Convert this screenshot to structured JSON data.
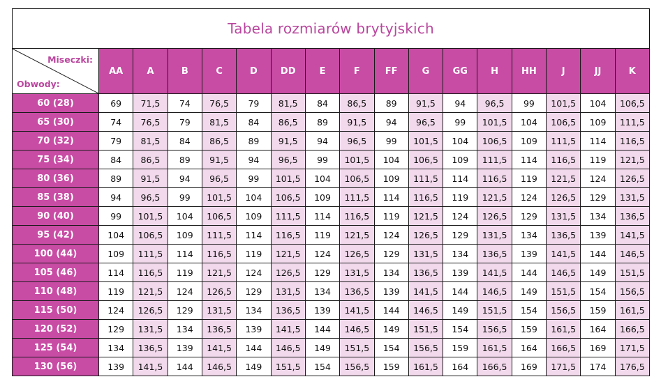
{
  "title": "Tabela rozmiarów brytyjskich",
  "corner": {
    "top_label": "Miseczki:",
    "bottom_label": "Obwody:"
  },
  "colors": {
    "header": "#C84BA4",
    "pink_cell": "#F2D9EC",
    "title": "#B9479E"
  },
  "cups": [
    "AA",
    "A",
    "B",
    "C",
    "D",
    "DD",
    "E",
    "F",
    "FF",
    "G",
    "GG",
    "H",
    "HH",
    "J",
    "JJ",
    "K"
  ],
  "rows": [
    {
      "band": "60 (28)",
      "values": [
        "69",
        "71,5",
        "74",
        "76,5",
        "79",
        "81,5",
        "84",
        "86,5",
        "89",
        "91,5",
        "94",
        "96,5",
        "99",
        "101,5",
        "104",
        "106,5"
      ]
    },
    {
      "band": "65 (30)",
      "values": [
        "74",
        "76,5",
        "79",
        "81,5",
        "84",
        "86,5",
        "89",
        "91,5",
        "94",
        "96,5",
        "99",
        "101,5",
        "104",
        "106,5",
        "109",
        "111,5"
      ]
    },
    {
      "band": "70 (32)",
      "values": [
        "79",
        "81,5",
        "84",
        "86,5",
        "89",
        "91,5",
        "94",
        "96,5",
        "99",
        "101,5",
        "104",
        "106,5",
        "109",
        "111,5",
        "114",
        "116,5"
      ]
    },
    {
      "band": "75 (34)",
      "values": [
        "84",
        "86,5",
        "89",
        "91,5",
        "94",
        "96,5",
        "99",
        "101,5",
        "104",
        "106,5",
        "109",
        "111,5",
        "114",
        "116,5",
        "119",
        "121,5"
      ]
    },
    {
      "band": "80 (36)",
      "values": [
        "89",
        "91,5",
        "94",
        "96,5",
        "99",
        "101,5",
        "104",
        "106,5",
        "109",
        "111,5",
        "114",
        "116,5",
        "119",
        "121,5",
        "124",
        "126,5"
      ]
    },
    {
      "band": "85 (38)",
      "values": [
        "94",
        "96,5",
        "99",
        "101,5",
        "104",
        "106,5",
        "109",
        "111,5",
        "114",
        "116,5",
        "119",
        "121,5",
        "124",
        "126,5",
        "129",
        "131,5"
      ]
    },
    {
      "band": "90 (40)",
      "values": [
        "99",
        "101,5",
        "104",
        "106,5",
        "109",
        "111,5",
        "114",
        "116,5",
        "119",
        "121,5",
        "124",
        "126,5",
        "129",
        "131,5",
        "134",
        "136,5"
      ]
    },
    {
      "band": "95 (42)",
      "values": [
        "104",
        "106,5",
        "109",
        "111,5",
        "114",
        "116,5",
        "119",
        "121,5",
        "124",
        "126,5",
        "129",
        "131,5",
        "134",
        "136,5",
        "139",
        "141,5"
      ]
    },
    {
      "band": "100 (44)",
      "values": [
        "109",
        "111,5",
        "114",
        "116,5",
        "119",
        "121,5",
        "124",
        "126,5",
        "129",
        "131,5",
        "134",
        "136,5",
        "139",
        "141,5",
        "144",
        "146,5"
      ]
    },
    {
      "band": "105 (46)",
      "values": [
        "114",
        "116,5",
        "119",
        "121,5",
        "124",
        "126,5",
        "129",
        "131,5",
        "134",
        "136,5",
        "139",
        "141,5",
        "144",
        "146,5",
        "149",
        "151,5"
      ]
    },
    {
      "band": "110 (48)",
      "values": [
        "119",
        "121,5",
        "124",
        "126,5",
        "129",
        "131,5",
        "134",
        "136,5",
        "139",
        "141,5",
        "144",
        "146,5",
        "149",
        "151,5",
        "154",
        "156,5"
      ]
    },
    {
      "band": "115 (50)",
      "values": [
        "124",
        "126,5",
        "129",
        "131,5",
        "134",
        "136,5",
        "139",
        "141,5",
        "144",
        "146,5",
        "149",
        "151,5",
        "154",
        "156,5",
        "159",
        "161,5"
      ]
    },
    {
      "band": "120 (52)",
      "values": [
        "129",
        "131,5",
        "134",
        "136,5",
        "139",
        "141,5",
        "144",
        "146,5",
        "149",
        "151,5",
        "154",
        "156,5",
        "159",
        "161,5",
        "164",
        "166,5"
      ]
    },
    {
      "band": "125 (54)",
      "values": [
        "134",
        "136,5",
        "139",
        "141,5",
        "144",
        "146,5",
        "149",
        "151,5",
        "154",
        "156,5",
        "159",
        "161,5",
        "164",
        "166,5",
        "169",
        "171,5"
      ]
    },
    {
      "band": "130 (56)",
      "values": [
        "139",
        "141,5",
        "144",
        "146,5",
        "149",
        "151,5",
        "154",
        "156,5",
        "159",
        "161,5",
        "164",
        "166,5",
        "169",
        "171,5",
        "174",
        "176,5"
      ]
    }
  ]
}
